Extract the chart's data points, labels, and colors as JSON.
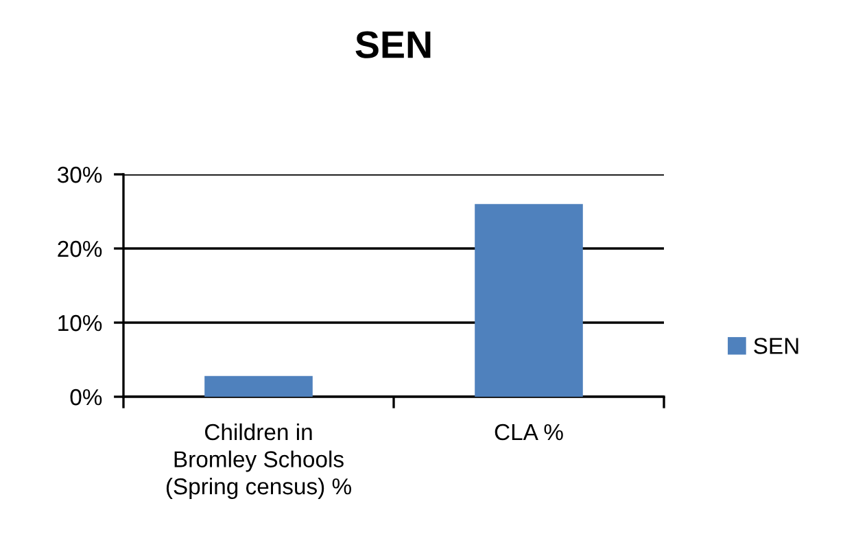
{
  "chart_data": {
    "type": "bar",
    "title": "SEN",
    "categories": [
      "Children in Bromley Schools (Spring census) %",
      "CLA %"
    ],
    "series": [
      {
        "name": "SEN",
        "color": "#4f81bd",
        "values": [
          2.8,
          26.0
        ]
      }
    ],
    "ylim": [
      0,
      30
    ],
    "yticks": [
      {
        "value": 0,
        "label": "0%"
      },
      {
        "value": 10,
        "label": "10%"
      },
      {
        "value": 20,
        "label": "20%"
      },
      {
        "value": 30,
        "label": "30%"
      }
    ],
    "grid": "y",
    "legend": "right"
  }
}
